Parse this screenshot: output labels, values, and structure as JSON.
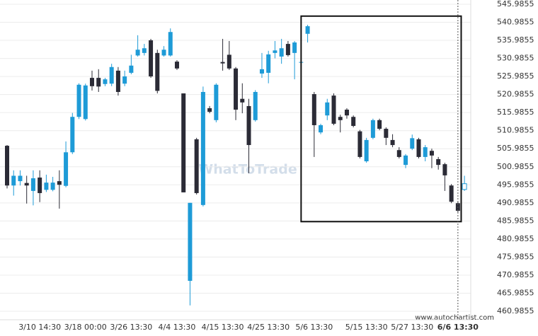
{
  "chart_data": {
    "type": "candlestick",
    "watermark": "WhatToTrade",
    "footer": "www.autochartist.com",
    "up_color": "#1e9bd7",
    "down_color": "#2b2b36",
    "current_candle_hollow": true,
    "marker_index": 69,
    "highlight": {
      "start_index": 45,
      "end_index": 69,
      "high": 542.7,
      "low": 485.8
    },
    "categories": [
      null,
      null,
      null,
      null,
      null,
      "3/10 14:30",
      null,
      null,
      null,
      null,
      null,
      null,
      "3/18 00:00",
      null,
      null,
      null,
      null,
      null,
      null,
      "3/26 13:30",
      null,
      null,
      null,
      null,
      null,
      null,
      "4/4 13:30",
      null,
      null,
      null,
      null,
      null,
      null,
      "4/15 13:30",
      null,
      null,
      null,
      null,
      null,
      null,
      "4/25 13:30",
      null,
      null,
      null,
      null,
      null,
      null,
      "5/6 13:30",
      null,
      null,
      null,
      null,
      null,
      null,
      null,
      "5/15 13:30",
      null,
      null,
      null,
      null,
      null,
      null,
      "5/27 13:30",
      null,
      null,
      null,
      null,
      null,
      null,
      "6/6 13:30",
      null
    ],
    "open": [
      506.8,
      495.8,
      497,
      496.5,
      494.3,
      498,
      494.6,
      494.6,
      497,
      495.7,
      505,
      514.8,
      514.2,
      525.6,
      525.6,
      523.9,
      524,
      527.6,
      524,
      527,
      531.8,
      532.5,
      536,
      532.5,
      531.8,
      531.8,
      530.1,
      521.3,
      469.4,
      508.6,
      490.4,
      517.2,
      513.9,
      530,
      532,
      528.2,
      519.8,
      517.8,
      513.9,
      526.8,
      527,
      532.5,
      531.5,
      535,
      532.5,
      529.8,
      537.8,
      521.1,
      510.5,
      515.2,
      520.7,
      514.8,
      516.8,
      514.8,
      510.8,
      502.5,
      509,
      513.9,
      511.5,
      508.4,
      505.6,
      501.5,
      506,
      508.6,
      503.7,
      505.4,
      503.1,
      501.7,
      495.8,
      490.9,
      494.7
    ],
    "high": [
      507,
      500,
      500,
      498.5,
      500,
      500,
      498.8,
      498.2,
      500,
      508,
      515.9,
      524.1,
      524,
      527.6,
      528,
      525.6,
      529.5,
      528.6,
      527.6,
      532,
      537.4,
      535,
      536.4,
      533.4,
      534.4,
      539.3,
      530.5,
      521.3,
      491,
      509,
      523.2,
      517.8,
      524.1,
      536.4,
      535.8,
      528.6,
      524.1,
      519.8,
      522.2,
      532.5,
      533.1,
      535.8,
      536.4,
      535.8,
      535.8,
      531.5,
      540.3,
      521.7,
      512.9,
      519.8,
      521.3,
      515.4,
      517.2,
      515.2,
      511.2,
      509,
      514.3,
      514.3,
      511.9,
      510,
      506.4,
      504.5,
      509.9,
      509,
      507,
      506,
      503.7,
      502.1,
      496.2,
      491.3,
      498.5
    ],
    "low": [
      495,
      493,
      495.8,
      490.8,
      490.3,
      491.2,
      494,
      494.2,
      489.4,
      495.3,
      504.5,
      514.2,
      513.8,
      522.1,
      521.7,
      523.3,
      523.3,
      520.7,
      523.3,
      526.6,
      531.5,
      531.8,
      525.6,
      521.3,
      531.5,
      531.5,
      527.8,
      493.9,
      462.6,
      493.3,
      490,
      515.8,
      513.3,
      527.6,
      527.8,
      513.9,
      515.8,
      499.2,
      513.5,
      525.6,
      524.1,
      531,
      529.5,
      531.5,
      525.2,
      528.6,
      535.4,
      503.7,
      510,
      513.9,
      512.5,
      510.5,
      514.3,
      511.9,
      503.3,
      502.1,
      508.6,
      511.1,
      507,
      506.4,
      503.3,
      500.6,
      505.6,
      503.3,
      502.5,
      500.6,
      500.2,
      494.3,
      490.9,
      488.4,
      494.3
    ],
    "close": [
      495.8,
      498.5,
      498.5,
      495.8,
      497.8,
      493.7,
      496.6,
      496.6,
      496,
      505,
      514.8,
      523.7,
      523.5,
      523.3,
      523.2,
      525.2,
      528.6,
      521.7,
      526,
      529,
      533.4,
      533.8,
      526,
      522,
      533.4,
      538.3,
      528.2,
      493.9,
      491,
      493.7,
      521.7,
      516.2,
      523.7,
      529.6,
      528.2,
      516.8,
      518.8,
      507,
      521.7,
      528,
      532.1,
      533.2,
      533.8,
      531.9,
      535.4,
      530,
      539.9,
      512.5,
      512.5,
      518.8,
      512.9,
      513.9,
      515.2,
      512.3,
      503.7,
      508.4,
      513.9,
      511.5,
      509,
      507,
      503.7,
      504.1,
      508.9,
      503.7,
      506.4,
      504.1,
      501.5,
      498.6,
      491.3,
      488.8,
      496.3
    ],
    "ylim": [
      460.9855,
      545.9855
    ],
    "yticks": [
      460.9855,
      465.9855,
      470.9855,
      475.9855,
      480.9855,
      485.9855,
      490.9855,
      495.9855,
      500.9855,
      505.9855,
      510.9855,
      515.9855,
      520.9855,
      525.9855,
      530.9855,
      535.9855,
      540.9855,
      545.9855
    ],
    "grid": true
  }
}
